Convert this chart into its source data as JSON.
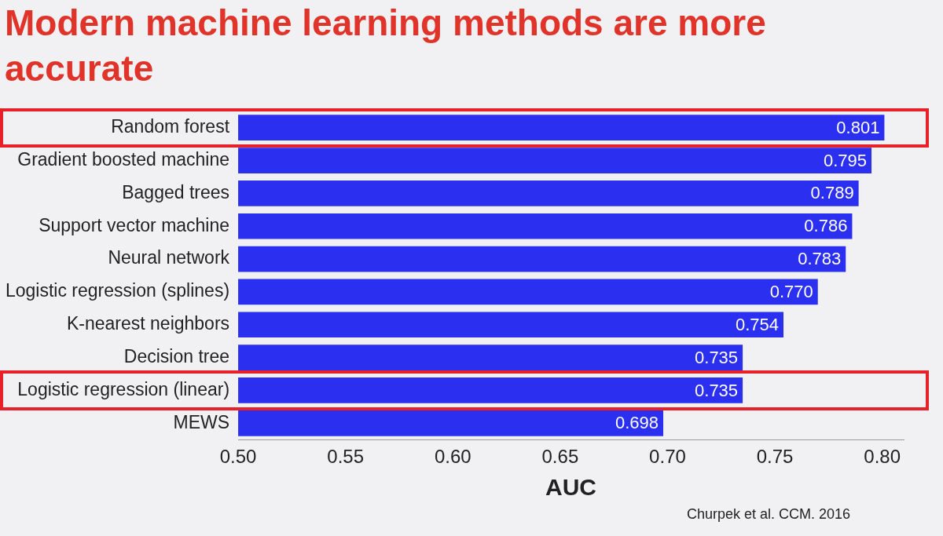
{
  "chart_data": {
    "type": "bar",
    "orientation": "horizontal",
    "title": "Modern machine learning methods are more accurate",
    "xlabel": "AUC",
    "categories": [
      "Random forest",
      "Gradient boosted machine",
      "Bagged trees",
      "Support vector machine",
      "Neural network",
      "Logistic regression (splines)",
      "K-nearest neighbors",
      "Decision tree",
      "Logistic regression (linear)",
      "MEWS"
    ],
    "values": [
      0.801,
      0.795,
      0.789,
      0.786,
      0.783,
      0.77,
      0.754,
      0.735,
      0.735,
      0.698
    ],
    "value_labels": [
      "0.801",
      "0.795",
      "0.789",
      "0.786",
      "0.783",
      "0.770",
      "0.754",
      "0.735",
      "0.735",
      "0.698"
    ],
    "color": "#2b2ff0",
    "xlim": [
      0.5,
      0.81
    ],
    "xticks": [
      {
        "value": 0.5,
        "label": "0.50"
      },
      {
        "value": 0.55,
        "label": "0.55"
      },
      {
        "value": 0.6,
        "label": "0.60"
      },
      {
        "value": 0.65,
        "label": "0.65"
      },
      {
        "value": 0.7,
        "label": "0.70"
      },
      {
        "value": 0.75,
        "label": "0.75"
      },
      {
        "value": 0.8,
        "label": "0.80"
      }
    ],
    "grid": false,
    "legend": false,
    "annotations": [
      "Churpek et al. CCM. 2016"
    ]
  }
}
